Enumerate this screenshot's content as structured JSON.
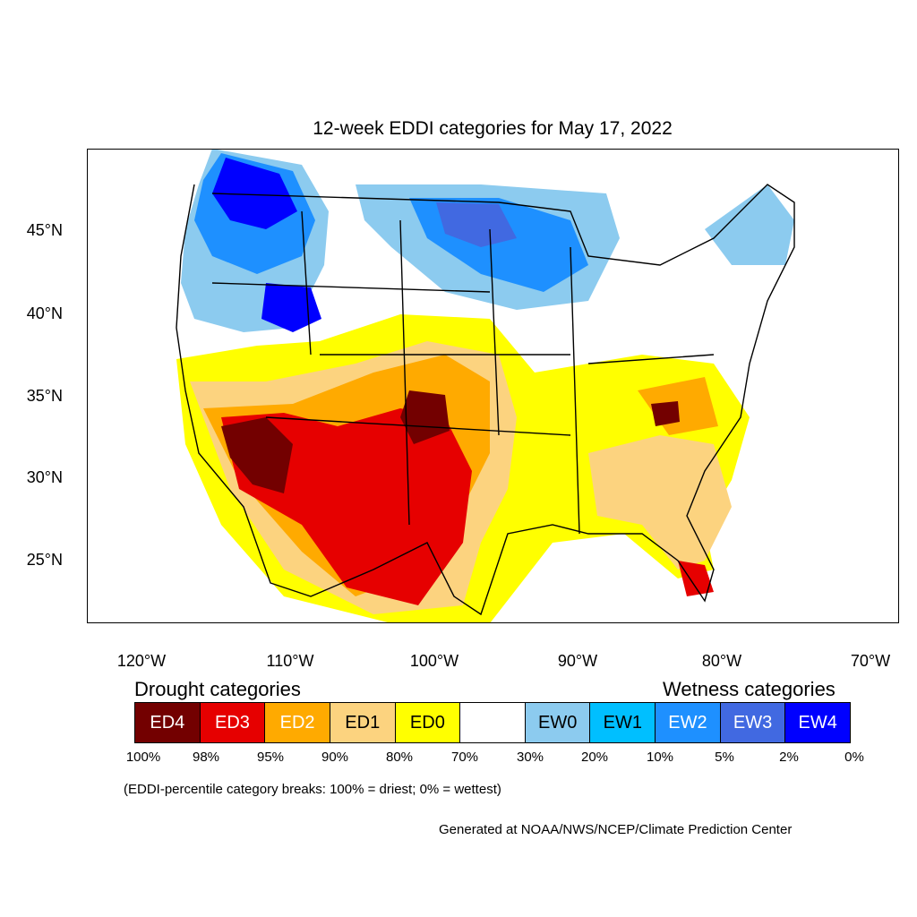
{
  "title": "12-week EDDI categories for May 17, 2022",
  "latitude_labels": [
    "45°N",
    "40°N",
    "35°N",
    "30°N",
    "25°N"
  ],
  "longitude_labels": [
    "120°W",
    "110°W",
    "100°W",
    "90°W",
    "80°W",
    "70°W"
  ],
  "legend": {
    "drought_title": "Drought categories",
    "wetness_title": "Wetness categories",
    "categories": [
      {
        "label": "ED4",
        "color": "#730000",
        "text_color": "#ffffff"
      },
      {
        "label": "ED3",
        "color": "#e60000",
        "text_color": "#ffffff"
      },
      {
        "label": "ED2",
        "color": "#ffaa00",
        "text_color": "#ffffff"
      },
      {
        "label": "ED1",
        "color": "#fcd37f",
        "text_color": "#000000"
      },
      {
        "label": "ED0",
        "color": "#ffff00",
        "text_color": "#000000"
      },
      {
        "label": "",
        "color": "#ffffff",
        "text_color": "#000000"
      },
      {
        "label": "EW0",
        "color": "#8ccbef",
        "text_color": "#000000"
      },
      {
        "label": "EW1",
        "color": "#00bfff",
        "text_color": "#000000"
      },
      {
        "label": "EW2",
        "color": "#1e90ff",
        "text_color": "#ffffff"
      },
      {
        "label": "EW3",
        "color": "#4169e1",
        "text_color": "#ffffff"
      },
      {
        "label": "EW4",
        "color": "#0000ff",
        "text_color": "#ffffff"
      }
    ],
    "breaks": [
      "100%",
      "98%",
      "95%",
      "90%",
      "80%",
      "70%",
      "30%",
      "20%",
      "10%",
      "5%",
      "2%",
      "0%"
    ]
  },
  "note": "(EDDI-percentile category breaks: 100% = driest; 0% = wettest)",
  "credit": "Generated at NOAA/NWS/NCEP/Climate Prediction Center"
}
